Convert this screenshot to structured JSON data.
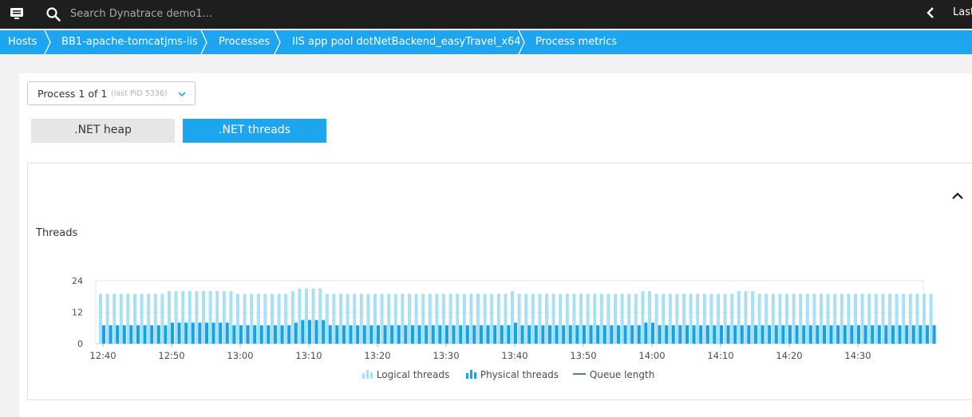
{
  "topbar": {
    "search_placeholder": "Search Dynatrace demo1...",
    "timeframe_label": "Last"
  },
  "breadcrumb": [
    {
      "label": "Hosts"
    },
    {
      "label": "BB1-apache-tomcatjms-iis"
    },
    {
      "label": "Processes"
    },
    {
      "label": "IIS app pool dotNetBackend_easyTravel_x64"
    },
    {
      "label": "Process metrics"
    }
  ],
  "process_selector": {
    "label": "Process 1 of 1",
    "sublabel": "(last PID 5336)"
  },
  "tabs": [
    {
      "label": ".NET heap",
      "active": false
    },
    {
      "label": ".NET threads",
      "active": true
    }
  ],
  "chart": {
    "title": "Threads",
    "legend": [
      {
        "label": "Logical threads",
        "color": "#a8e1f5"
      },
      {
        "label": "Physical threads",
        "color": "#18a2e6"
      },
      {
        "label": "Queue length",
        "color": "#5a7e91"
      }
    ]
  },
  "chart_data": {
    "type": "bar",
    "title": "Threads",
    "ylim": [
      0,
      24
    ],
    "yticks": [
      "0",
      "12",
      "24"
    ],
    "xticks": [
      "12:40",
      "12:50",
      "13:00",
      "13:10",
      "13:20",
      "13:30",
      "13:40",
      "13:50",
      "14:00",
      "14:10",
      "14:20",
      "14:30"
    ],
    "grid": true,
    "legend_position": "bottom",
    "x_start": "12:40",
    "x_interval_minutes": 1,
    "series": [
      {
        "name": "Logical threads",
        "color": "#a8e1f5",
        "values": [
          19,
          19,
          19,
          19,
          19,
          19,
          19,
          19,
          19,
          19,
          20,
          20,
          20,
          20,
          20,
          20,
          20,
          20,
          20,
          20,
          19,
          19,
          19,
          19,
          19,
          19,
          19,
          19,
          20,
          21,
          21,
          21,
          21,
          19,
          19,
          19,
          19,
          19,
          19,
          19,
          19,
          19,
          19,
          19,
          19,
          19,
          19,
          19,
          19,
          19,
          19,
          19,
          19,
          19,
          19,
          19,
          19,
          19,
          19,
          19,
          20,
          19,
          19,
          19,
          19,
          19,
          19,
          19,
          19,
          19,
          19,
          19,
          19,
          19,
          19,
          19,
          19,
          19,
          19,
          20,
          20,
          19,
          19,
          19,
          19,
          19,
          19,
          19,
          19,
          19,
          19,
          19,
          19,
          20,
          20,
          20,
          19,
          19,
          19,
          19,
          19,
          19,
          19,
          19,
          19,
          19,
          19,
          19,
          19,
          19,
          19,
          19,
          19,
          19,
          19,
          19,
          19,
          19,
          19,
          19,
          19,
          19
        ]
      },
      {
        "name": "Physical threads",
        "color": "#18a2e6",
        "values": [
          7,
          7,
          7,
          7,
          7,
          7,
          7,
          7,
          7,
          7,
          8,
          8,
          8,
          8,
          8,
          8,
          8,
          8,
          8,
          7,
          7,
          7,
          7,
          7,
          7,
          7,
          7,
          7,
          8,
          9,
          9,
          9,
          9,
          7,
          7,
          7,
          7,
          7,
          7,
          7,
          7,
          7,
          7,
          7,
          7,
          7,
          7,
          7,
          7,
          7,
          7,
          7,
          7,
          7,
          7,
          7,
          7,
          7,
          7,
          7,
          8,
          7,
          7,
          7,
          7,
          7,
          7,
          7,
          7,
          7,
          7,
          7,
          7,
          7,
          7,
          7,
          7,
          7,
          7,
          8,
          8,
          7,
          7,
          7,
          7,
          7,
          7,
          7,
          7,
          7,
          7,
          7,
          7,
          7,
          7,
          7,
          7,
          7,
          7,
          7,
          7,
          7,
          7,
          7,
          7,
          7,
          7,
          7,
          7,
          7,
          7,
          7,
          7,
          7,
          7,
          7,
          7,
          7,
          7,
          7,
          7,
          7
        ]
      },
      {
        "name": "Queue length",
        "color": "#5a7e91",
        "values": []
      }
    ]
  }
}
